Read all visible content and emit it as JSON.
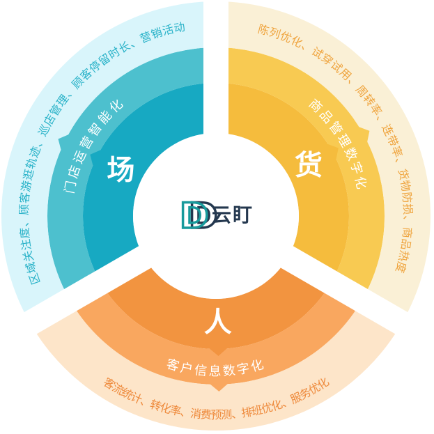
{
  "logo": {
    "mark": "D",
    "name": "云盯",
    "teal": "#189a9c",
    "navy": "#24384f"
  },
  "colors": {
    "background": "#ffffff",
    "ring_text": "#ffffff"
  },
  "sectors": [
    {
      "key": "chang",
      "big": "场",
      "middle": "门店运营智能化",
      "outer": "区域关注度、顾客游逛轨迹、巡店管理、顾客停留时长、营销活动",
      "colors": {
        "inner": "#17a9c2",
        "middle": "#4dc0ce",
        "outer": "#d9f5fb",
        "outer_text": "#29b2c8"
      }
    },
    {
      "key": "huo",
      "big": "货",
      "middle": "商品管理数字化",
      "outer": "陈列优化、试穿试用、周转率、连带率、货物防损、商品热度",
      "colors": {
        "inner": "#f5bc3d",
        "middle": "#f8ca52",
        "outer": "#faf0d6",
        "outer_text": "#efa43e"
      }
    },
    {
      "key": "ren",
      "big": "人",
      "middle": "客户信息数字化",
      "outer": "客流统计、转化率、消费预测、排班优化、服务优化",
      "colors": {
        "inner": "#f29440",
        "middle": "#f9a75f",
        "outer": "#fde5c9",
        "outer_text": "#ee8a3c"
      }
    }
  ]
}
